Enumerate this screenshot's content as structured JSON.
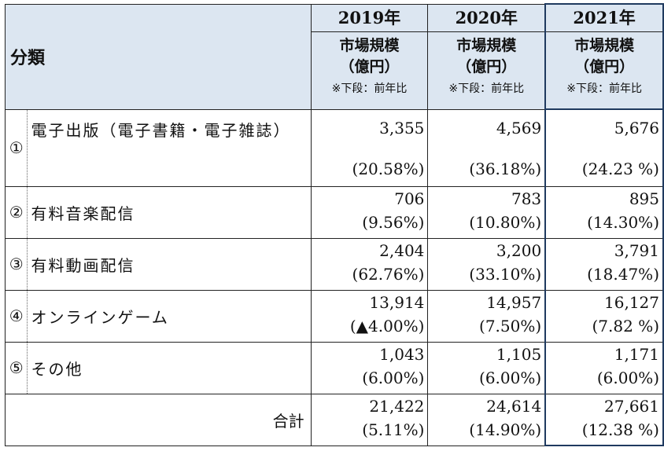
{
  "header": {
    "category_label": "分類",
    "years": [
      "2019年",
      "2020年",
      "2021年"
    ],
    "metric_label": "市場規模",
    "unit_label": "（億円）",
    "note_label": "※下段：前年比"
  },
  "rows": [
    {
      "num": "①",
      "label": "電子出版（電子書籍・電子雑誌）",
      "values": [
        "3,355",
        "4,569",
        "5,676"
      ],
      "pct": [
        "(20.58%)",
        "(36.18%)",
        "(24.23 %)"
      ]
    },
    {
      "num": "②",
      "label": "有料音楽配信",
      "values": [
        "706",
        "783",
        "895"
      ],
      "pct": [
        "(9.56%)",
        "(10.80%)",
        "(14.30%)"
      ]
    },
    {
      "num": "③",
      "label": "有料動画配信",
      "values": [
        "2,404",
        "3,200",
        "3,791"
      ],
      "pct": [
        "(62.76%)",
        "(33.10%)",
        "(18.47%)"
      ]
    },
    {
      "num": "④",
      "label": "オンラインゲーム",
      "values": [
        "13,914",
        "14,957",
        "16,127"
      ],
      "pct": [
        "(▲4.00%)",
        "(7.50%)",
        "(7.82 %)"
      ]
    },
    {
      "num": "⑤",
      "label": "その他",
      "values": [
        "1,043",
        "1,105",
        "1,171"
      ],
      "pct": [
        "(6.00%)",
        "(6.00%)",
        "(6.00%)"
      ]
    }
  ],
  "total": {
    "label": "合計",
    "values": [
      "21,422",
      "24,614",
      "27,661"
    ],
    "pct": [
      "(5.11%)",
      "(14.90%)",
      "(12.38 %)"
    ]
  }
}
